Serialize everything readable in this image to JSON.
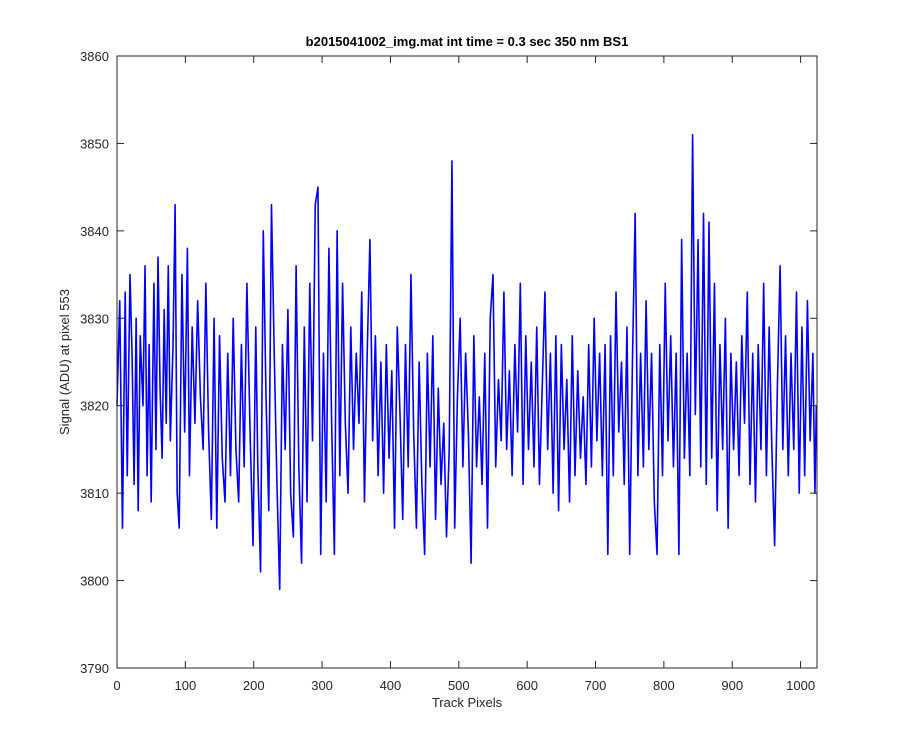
{
  "chart_data": {
    "type": "line",
    "title": "b2015041002_img.mat int time = 0.3 sec  350 nm BS1",
    "xlabel": "Track Pixels",
    "ylabel": "Signal (ADU) at pixel 553",
    "xlim": [
      0,
      1024
    ],
    "ylim": [
      3790,
      3860
    ],
    "xticks": [
      0,
      100,
      200,
      300,
      400,
      500,
      600,
      700,
      800,
      900,
      1000
    ],
    "yticks": [
      3790,
      3800,
      3810,
      3820,
      3830,
      3840,
      3850,
      3860
    ],
    "grid": false,
    "line_color": "#0000ff",
    "series": [
      {
        "name": "",
        "sample_points": [
          [
            0,
            3820
          ],
          [
            4,
            3832
          ],
          [
            8,
            3806
          ],
          [
            12,
            3833
          ],
          [
            15,
            3812
          ],
          [
            19,
            3835
          ],
          [
            22,
            3826
          ],
          [
            25,
            3811
          ],
          [
            28,
            3830
          ],
          [
            31,
            3808
          ],
          [
            34,
            3828
          ],
          [
            38,
            3820
          ],
          [
            41,
            3836
          ],
          [
            44,
            3812
          ],
          [
            47,
            3827
          ],
          [
            50,
            3809
          ],
          [
            54,
            3834
          ],
          [
            57,
            3815
          ],
          [
            60,
            3837
          ],
          [
            63,
            3822
          ],
          [
            66,
            3814
          ],
          [
            69,
            3831
          ],
          [
            72,
            3818
          ],
          [
            75,
            3836
          ],
          [
            78,
            3816
          ],
          [
            82,
            3827
          ],
          [
            85,
            3843
          ],
          [
            88,
            3810
          ],
          [
            91,
            3806
          ],
          [
            95,
            3835
          ],
          [
            99,
            3817
          ],
          [
            103,
            3838
          ],
          [
            106,
            3812
          ],
          [
            110,
            3829
          ],
          [
            114,
            3818
          ],
          [
            118,
            3832
          ],
          [
            122,
            3821
          ],
          [
            126,
            3815
          ],
          [
            130,
            3834
          ],
          [
            134,
            3817
          ],
          [
            138,
            3807
          ],
          [
            142,
            3830
          ],
          [
            146,
            3806
          ],
          [
            150,
            3828
          ],
          [
            154,
            3814
          ],
          [
            158,
            3809
          ],
          [
            162,
            3826
          ],
          [
            166,
            3812
          ],
          [
            170,
            3830
          ],
          [
            174,
            3815
          ],
          [
            178,
            3809
          ],
          [
            182,
            3827
          ],
          [
            186,
            3813
          ],
          [
            190,
            3834
          ],
          [
            195,
            3816
          ],
          [
            199,
            3804
          ],
          [
            203,
            3829
          ],
          [
            206,
            3813
          ],
          [
            210,
            3801
          ],
          [
            214,
            3840
          ],
          [
            218,
            3821
          ],
          [
            222,
            3808
          ],
          [
            226,
            3843
          ],
          [
            230,
            3826
          ],
          [
            234,
            3811
          ],
          [
            238,
            3799
          ],
          [
            242,
            3827
          ],
          [
            246,
            3815
          ],
          [
            250,
            3831
          ],
          [
            254,
            3810
          ],
          [
            258,
            3805
          ],
          [
            262,
            3836
          ],
          [
            266,
            3813
          ],
          [
            270,
            3802
          ],
          [
            274,
            3829
          ],
          [
            278,
            3809
          ],
          [
            282,
            3834
          ],
          [
            286,
            3816
          ],
          [
            290,
            3843
          ],
          [
            294,
            3845
          ],
          [
            298,
            3803
          ],
          [
            302,
            3826
          ],
          [
            306,
            3809
          ],
          [
            310,
            3838
          ],
          [
            314,
            3818
          ],
          [
            318,
            3803
          ],
          [
            322,
            3840
          ],
          [
            326,
            3812
          ],
          [
            330,
            3834
          ],
          [
            334,
            3818
          ],
          [
            338,
            3810
          ],
          [
            342,
            3829
          ],
          [
            346,
            3815
          ],
          [
            350,
            3826
          ],
          [
            354,
            3818
          ],
          [
            358,
            3833
          ],
          [
            362,
            3809
          ],
          [
            366,
            3826
          ],
          [
            370,
            3839
          ],
          [
            374,
            3816
          ],
          [
            378,
            3828
          ],
          [
            382,
            3812
          ],
          [
            386,
            3825
          ],
          [
            390,
            3810
          ],
          [
            394,
            3827
          ],
          [
            398,
            3814
          ],
          [
            402,
            3824
          ],
          [
            406,
            3806
          ],
          [
            410,
            3829
          ],
          [
            414,
            3819
          ],
          [
            418,
            3807
          ],
          [
            422,
            3827
          ],
          [
            426,
            3813
          ],
          [
            430,
            3835
          ],
          [
            434,
            3817
          ],
          [
            438,
            3806
          ],
          [
            442,
            3825
          ],
          [
            446,
            3811
          ],
          [
            450,
            3803
          ],
          [
            454,
            3826
          ],
          [
            458,
            3813
          ],
          [
            462,
            3828
          ],
          [
            466,
            3807
          ],
          [
            470,
            3822
          ],
          [
            474,
            3811
          ],
          [
            478,
            3818
          ],
          [
            482,
            3805
          ],
          [
            486,
            3815
          ],
          [
            490,
            3848
          ],
          [
            494,
            3806
          ],
          [
            498,
            3821
          ],
          [
            502,
            3830
          ],
          [
            506,
            3813
          ],
          [
            510,
            3826
          ],
          [
            514,
            3817
          ],
          [
            518,
            3802
          ],
          [
            522,
            3828
          ],
          [
            526,
            3813
          ],
          [
            530,
            3821
          ],
          [
            534,
            3811
          ],
          [
            538,
            3826
          ],
          [
            542,
            3806
          ],
          [
            546,
            3830
          ],
          [
            550,
            3835
          ],
          [
            554,
            3813
          ],
          [
            558,
            3823
          ],
          [
            562,
            3816
          ],
          [
            566,
            3833
          ],
          [
            570,
            3815
          ],
          [
            574,
            3824
          ],
          [
            578,
            3812
          ],
          [
            582,
            3827
          ],
          [
            586,
            3817
          ],
          [
            590,
            3834
          ],
          [
            594,
            3811
          ],
          [
            598,
            3828
          ],
          [
            602,
            3815
          ],
          [
            606,
            3825
          ],
          [
            610,
            3813
          ],
          [
            614,
            3829
          ],
          [
            618,
            3811
          ],
          [
            622,
            3822
          ],
          [
            626,
            3833
          ],
          [
            630,
            3815
          ],
          [
            634,
            3826
          ],
          [
            638,
            3810
          ],
          [
            642,
            3828
          ],
          [
            646,
            3808
          ],
          [
            650,
            3827
          ],
          [
            654,
            3815
          ],
          [
            658,
            3823
          ],
          [
            662,
            3809
          ],
          [
            666,
            3828
          ],
          [
            670,
            3812
          ],
          [
            674,
            3824
          ],
          [
            678,
            3814
          ],
          [
            682,
            3821
          ],
          [
            686,
            3811
          ],
          [
            690,
            3827
          ],
          [
            694,
            3813
          ],
          [
            698,
            3830
          ],
          [
            702,
            3816
          ],
          [
            706,
            3826
          ],
          [
            710,
            3812
          ],
          [
            714,
            3827
          ],
          [
            718,
            3803
          ],
          [
            722,
            3828
          ],
          [
            726,
            3812
          ],
          [
            730,
            3833
          ],
          [
            734,
            3817
          ],
          [
            738,
            3825
          ],
          [
            742,
            3811
          ],
          [
            746,
            3829
          ],
          [
            750,
            3803
          ],
          [
            754,
            3825
          ],
          [
            758,
            3842
          ],
          [
            762,
            3812
          ],
          [
            766,
            3826
          ],
          [
            770,
            3813
          ],
          [
            774,
            3832
          ],
          [
            778,
            3815
          ],
          [
            782,
            3826
          ],
          [
            786,
            3809
          ],
          [
            790,
            3803
          ],
          [
            794,
            3827
          ],
          [
            798,
            3812
          ],
          [
            802,
            3834
          ],
          [
            806,
            3816
          ],
          [
            810,
            3828
          ],
          [
            814,
            3813
          ],
          [
            818,
            3826
          ],
          [
            822,
            3803
          ],
          [
            826,
            3839
          ],
          [
            830,
            3814
          ],
          [
            834,
            3826
          ],
          [
            838,
            3812
          ],
          [
            842,
            3851
          ],
          [
            846,
            3819
          ],
          [
            850,
            3839
          ],
          [
            854,
            3813
          ],
          [
            858,
            3842
          ],
          [
            862,
            3811
          ],
          [
            866,
            3841
          ],
          [
            870,
            3814
          ],
          [
            874,
            3834
          ],
          [
            878,
            3808
          ],
          [
            882,
            3827
          ],
          [
            886,
            3815
          ],
          [
            890,
            3830
          ],
          [
            894,
            3806
          ],
          [
            898,
            3826
          ],
          [
            902,
            3815
          ],
          [
            906,
            3825
          ],
          [
            910,
            3812
          ],
          [
            914,
            3828
          ],
          [
            918,
            3818
          ],
          [
            922,
            3833
          ],
          [
            926,
            3811
          ],
          [
            930,
            3826
          ],
          [
            934,
            3809
          ],
          [
            938,
            3827
          ],
          [
            942,
            3815
          ],
          [
            946,
            3834
          ],
          [
            950,
            3812
          ],
          [
            954,
            3829
          ],
          [
            958,
            3815
          ],
          [
            962,
            3804
          ],
          [
            966,
            3822
          ],
          [
            970,
            3836
          ],
          [
            974,
            3815
          ],
          [
            978,
            3828
          ],
          [
            982,
            3812
          ],
          [
            986,
            3826
          ],
          [
            990,
            3815
          ],
          [
            994,
            3833
          ],
          [
            998,
            3810
          ],
          [
            1002,
            3829
          ],
          [
            1006,
            3812
          ],
          [
            1010,
            3832
          ],
          [
            1014,
            3816
          ],
          [
            1018,
            3826
          ],
          [
            1021,
            3810
          ],
          [
            1023,
            3820
          ]
        ]
      }
    ]
  }
}
